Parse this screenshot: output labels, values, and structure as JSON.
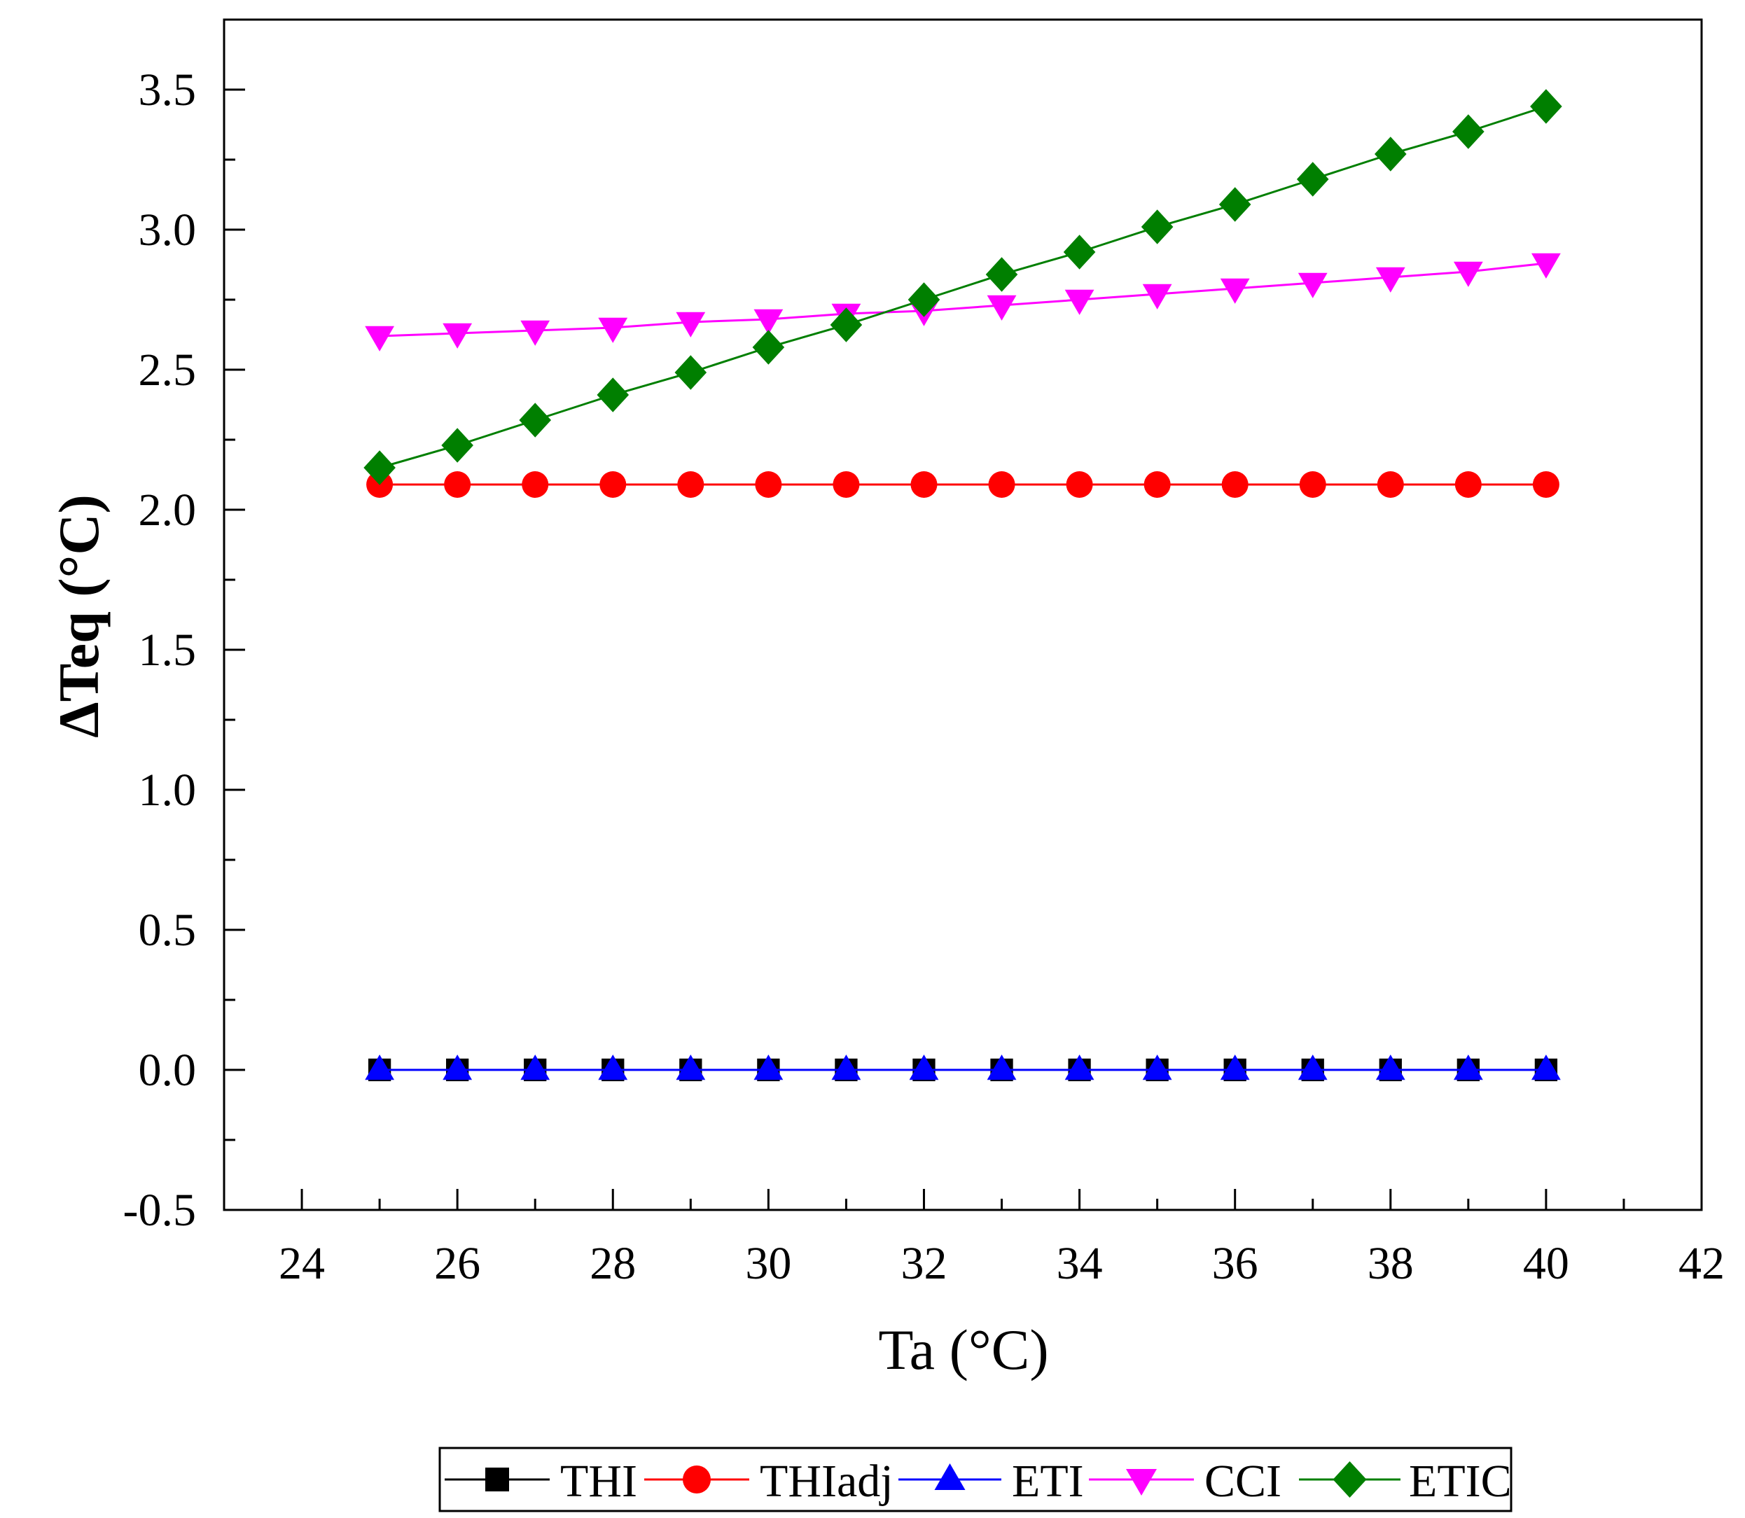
{
  "chart_data": {
    "type": "line",
    "title": "",
    "xlabel": "Ta (°C)",
    "ylabel": "ΔTeq (°C)",
    "xlim": [
      23,
      42
    ],
    "ylim": [
      -0.5,
      3.75
    ],
    "xticks": [
      24,
      26,
      28,
      30,
      32,
      34,
      36,
      38,
      40,
      42
    ],
    "yticks": [
      -0.5,
      0.0,
      0.5,
      1.0,
      1.5,
      2.0,
      2.5,
      3.0,
      3.5
    ],
    "ytick_labels": [
      "-0.5",
      "0.0",
      "0.5",
      "1.0",
      "1.5",
      "2.0",
      "2.5",
      "3.0",
      "3.5"
    ],
    "x": [
      25,
      26,
      27,
      28,
      29,
      30,
      31,
      32,
      33,
      34,
      35,
      36,
      37,
      38,
      39,
      40
    ],
    "legend_position": "bottom",
    "series": [
      {
        "name": "THI",
        "color": "#000000",
        "marker": "square",
        "values": [
          0,
          0,
          0,
          0,
          0,
          0,
          0,
          0,
          0,
          0,
          0,
          0,
          0,
          0,
          0,
          0
        ]
      },
      {
        "name": "THIadj",
        "color": "#ff0000",
        "marker": "circle",
        "values": [
          2.09,
          2.09,
          2.09,
          2.09,
          2.09,
          2.09,
          2.09,
          2.09,
          2.09,
          2.09,
          2.09,
          2.09,
          2.09,
          2.09,
          2.09,
          2.09
        ]
      },
      {
        "name": "ETI",
        "color": "#0000ff",
        "marker": "triangle-up",
        "values": [
          0,
          0,
          0,
          0,
          0,
          0,
          0,
          0,
          0,
          0,
          0,
          0,
          0,
          0,
          0,
          0
        ]
      },
      {
        "name": "CCI",
        "color": "#ff00ff",
        "marker": "triangle-down",
        "values": [
          2.62,
          2.63,
          2.64,
          2.65,
          2.67,
          2.68,
          2.7,
          2.71,
          2.73,
          2.75,
          2.77,
          2.79,
          2.81,
          2.83,
          2.85,
          2.88
        ]
      },
      {
        "name": "ETIC",
        "color": "#007f00",
        "marker": "diamond",
        "values": [
          2.15,
          2.23,
          2.32,
          2.41,
          2.49,
          2.58,
          2.66,
          2.75,
          2.84,
          2.92,
          3.01,
          3.09,
          3.18,
          3.27,
          3.35,
          3.44
        ]
      }
    ]
  }
}
